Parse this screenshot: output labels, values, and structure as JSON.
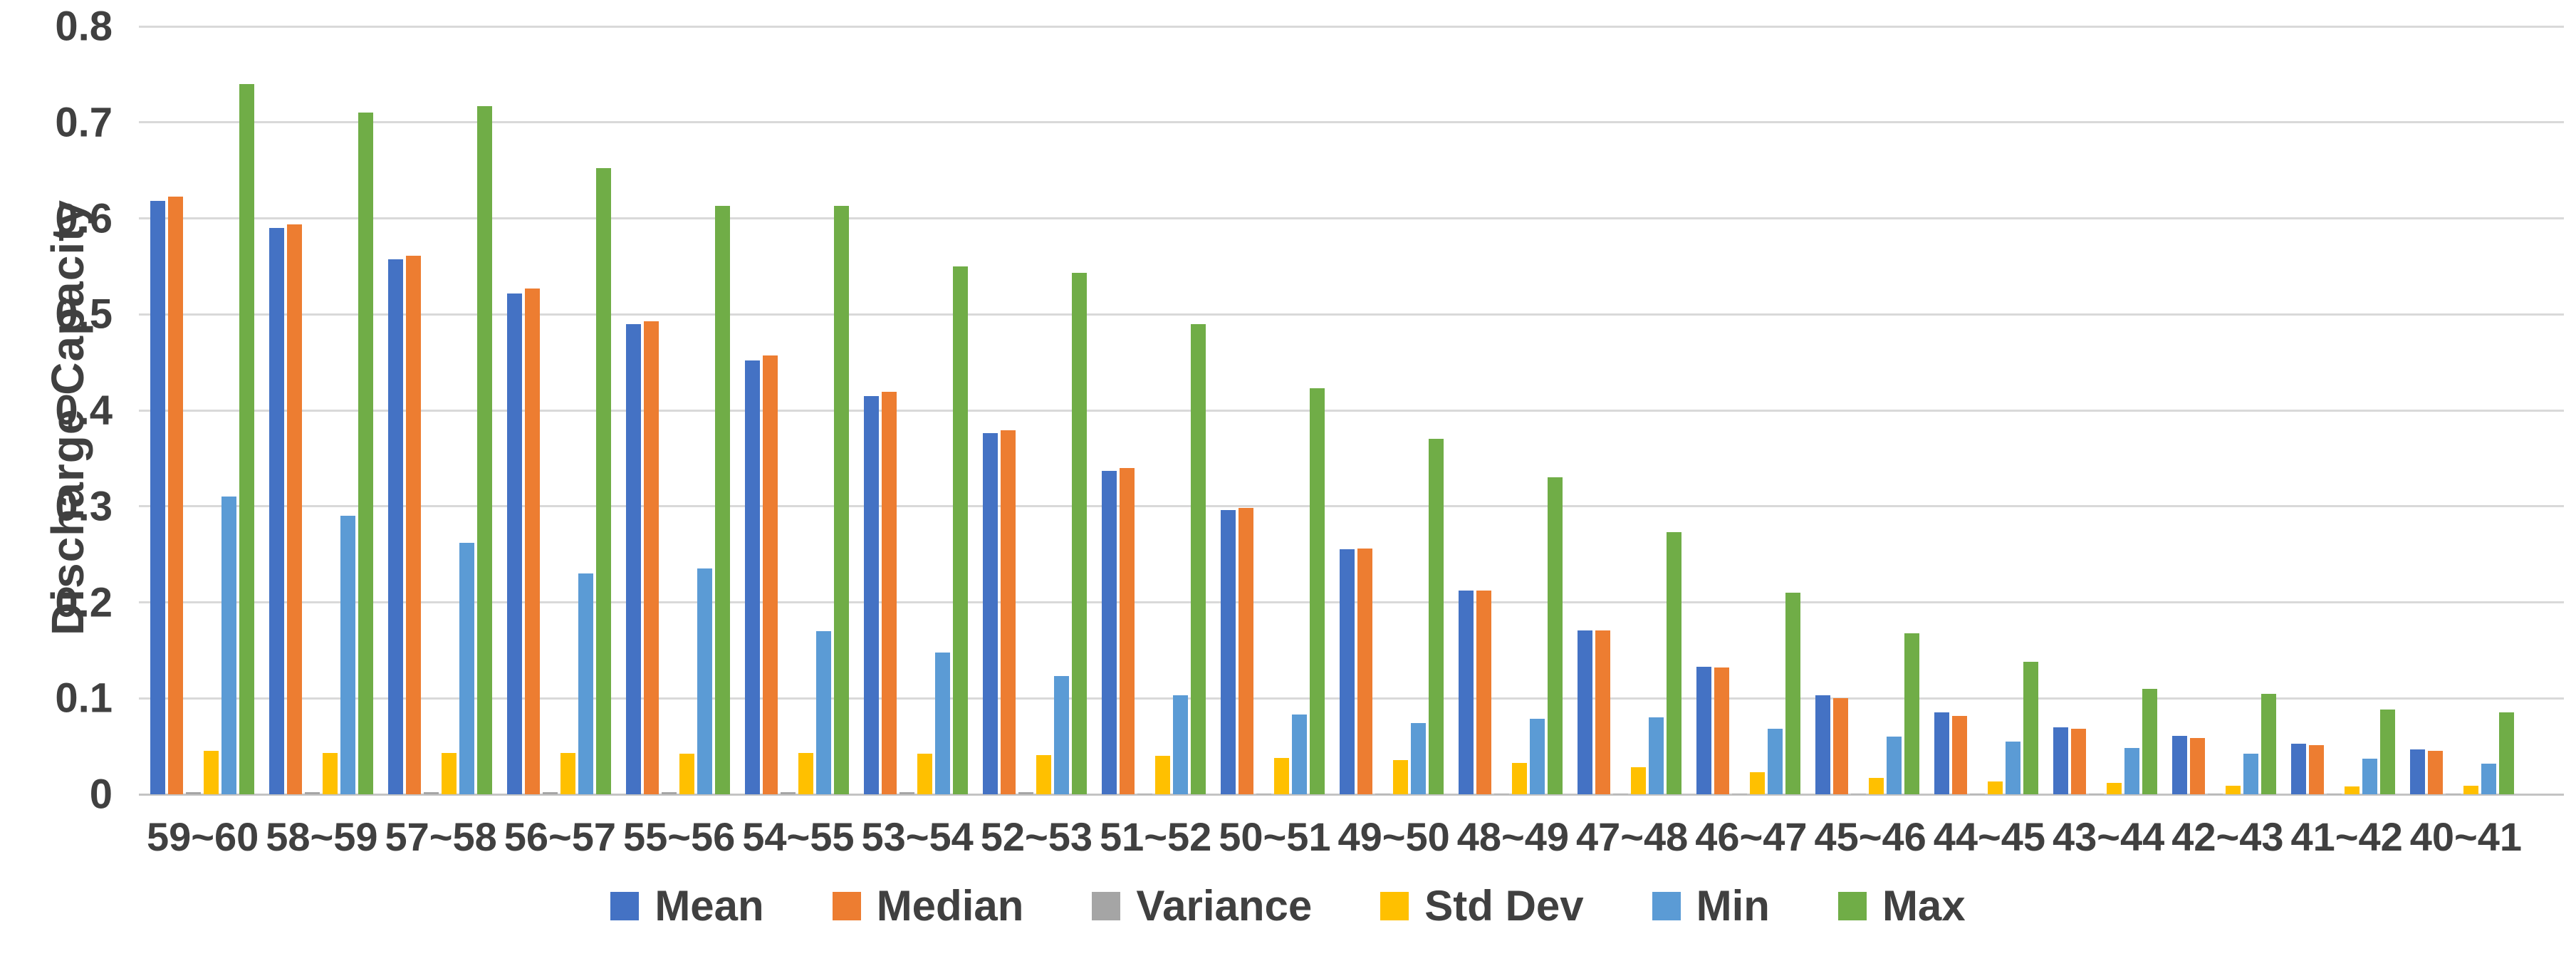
{
  "chart_data": {
    "type": "bar",
    "title": "",
    "xlabel": "",
    "ylabel": "Discharge Capacity",
    "ylim": [
      0,
      0.8
    ],
    "ytick_step": 0.1,
    "ytick_labels": [
      "0",
      "0.1",
      "0.2",
      "0.3",
      "0.4",
      "0.5",
      "0.6",
      "0.7",
      "0.8"
    ],
    "grid": true,
    "legend_position": "bottom",
    "categories": [
      "59~60",
      "58~59",
      "57~58",
      "56~57",
      "55~56",
      "54~55",
      "53~54",
      "52~53",
      "51~52",
      "50~51",
      "49~50",
      "48~49",
      "47~48",
      "46~47",
      "45~46",
      "44~45",
      "43~44",
      "42~43",
      "41~42",
      "40~41"
    ],
    "series": [
      {
        "name": "Mean",
        "color": "#4472C4",
        "values": [
          0.618,
          0.59,
          0.557,
          0.522,
          0.49,
          0.452,
          0.415,
          0.376,
          0.337,
          0.296,
          0.255,
          0.212,
          0.171,
          0.133,
          0.103,
          0.085,
          0.07,
          0.061,
          0.053,
          0.047
        ]
      },
      {
        "name": "Median",
        "color": "#ED7D31",
        "values": [
          0.623,
          0.594,
          0.561,
          0.527,
          0.493,
          0.457,
          0.419,
          0.379,
          0.34,
          0.298,
          0.256,
          0.212,
          0.171,
          0.132,
          0.1,
          0.082,
          0.068,
          0.059,
          0.051,
          0.045
        ]
      },
      {
        "name": "Variance",
        "color": "#A5A5A5",
        "values": [
          0.002,
          0.002,
          0.002,
          0.002,
          0.002,
          0.002,
          0.002,
          0.002,
          0.001,
          0.001,
          0.001,
          0.001,
          0.001,
          0.001,
          0.001,
          0.001,
          0.001,
          0.001,
          0.001,
          0.001
        ]
      },
      {
        "name": "Std Dev",
        "color": "#FFC000",
        "values": [
          0.045,
          0.043,
          0.043,
          0.043,
          0.042,
          0.043,
          0.042,
          0.041,
          0.04,
          0.038,
          0.036,
          0.033,
          0.028,
          0.023,
          0.017,
          0.013,
          0.012,
          0.009,
          0.008,
          0.009
        ]
      },
      {
        "name": "Min",
        "color": "#5B9BD5",
        "values": [
          0.31,
          0.29,
          0.262,
          0.23,
          0.235,
          0.17,
          0.148,
          0.123,
          0.103,
          0.083,
          0.074,
          0.079,
          0.08,
          0.068,
          0.06,
          0.055,
          0.048,
          0.042,
          0.037,
          0.032
        ]
      },
      {
        "name": "Max",
        "color": "#70AD47",
        "values": [
          0.74,
          0.71,
          0.717,
          0.652,
          0.613,
          0.613,
          0.55,
          0.543,
          0.49,
          0.423,
          0.37,
          0.33,
          0.273,
          0.21,
          0.168,
          0.138,
          0.11,
          0.105,
          0.088,
          0.085
        ]
      }
    ]
  },
  "styles": {
    "text_color": "#404040",
    "gridline_color": "#D9D9D9",
    "axis_line_color": "#C3C3C3",
    "background": "#FFFFFF"
  }
}
